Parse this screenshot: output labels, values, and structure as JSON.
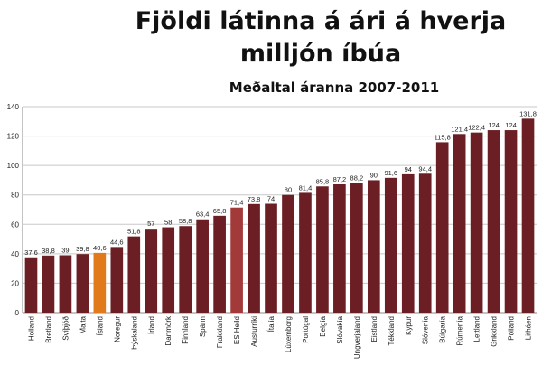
{
  "chart_data": {
    "type": "bar",
    "title": "Fjöldi látinna á ári á hverja milljón íbúa",
    "subtitle": "Meðaltal áranna 2007-2011",
    "categories": [
      "Holland",
      "Bretland",
      "Svíþjóð",
      "Malta",
      "Ísland",
      "Noregur",
      "Þýskaland",
      "Írland",
      "Danmörk",
      "Finnland",
      "Spánn",
      "Frakkland",
      "ES Heild",
      "Austurríki",
      "Ítalía",
      "Lúxemborg",
      "Portúgal",
      "Belgía",
      "Slóvakía",
      "Ungverjaland",
      "Eistland",
      "Tékkland",
      "Kýpur",
      "Slóvenía",
      "Búlgaría",
      "Rúmenía",
      "Lettland",
      "Grikkland",
      "Pólland",
      "Litháen"
    ],
    "values": [
      37.6,
      38.8,
      39,
      39.8,
      40.6,
      44.6,
      51.8,
      57,
      58,
      58.8,
      63.4,
      65.8,
      71.4,
      73.8,
      74,
      80,
      81.4,
      85.8,
      87.2,
      88.2,
      90,
      91.6,
      94,
      94.4,
      115.8,
      121.4,
      122.4,
      124,
      124,
      131.8
    ],
    "value_labels": [
      "37,6",
      "38,8",
      "39",
      "39,8",
      "40,6",
      "44,6",
      "51,8",
      "57",
      "58",
      "58,8",
      "63,4",
      "65,8",
      "71,4",
      "73,8",
      "74",
      "80",
      "81,4",
      "85,8",
      "87,2",
      "88,2",
      "90",
      "91,6",
      "94",
      "94,4",
      "115,8",
      "121,4",
      "122,4",
      "124",
      "124",
      "131,8"
    ],
    "ylim": [
      0,
      140
    ],
    "yticks": [
      0,
      20,
      40,
      60,
      80,
      100,
      120,
      140
    ],
    "grid": true,
    "colors": {
      "default": "#6b1f24",
      "highlight_iceland": "#e07a1a",
      "highlight_eu": "#a33a3a",
      "grid": "#c8c8c8",
      "axis": "#8a8a8a"
    },
    "highlights": {
      "Ísland": "highlight_iceland",
      "ES Heild": "highlight_eu"
    }
  }
}
